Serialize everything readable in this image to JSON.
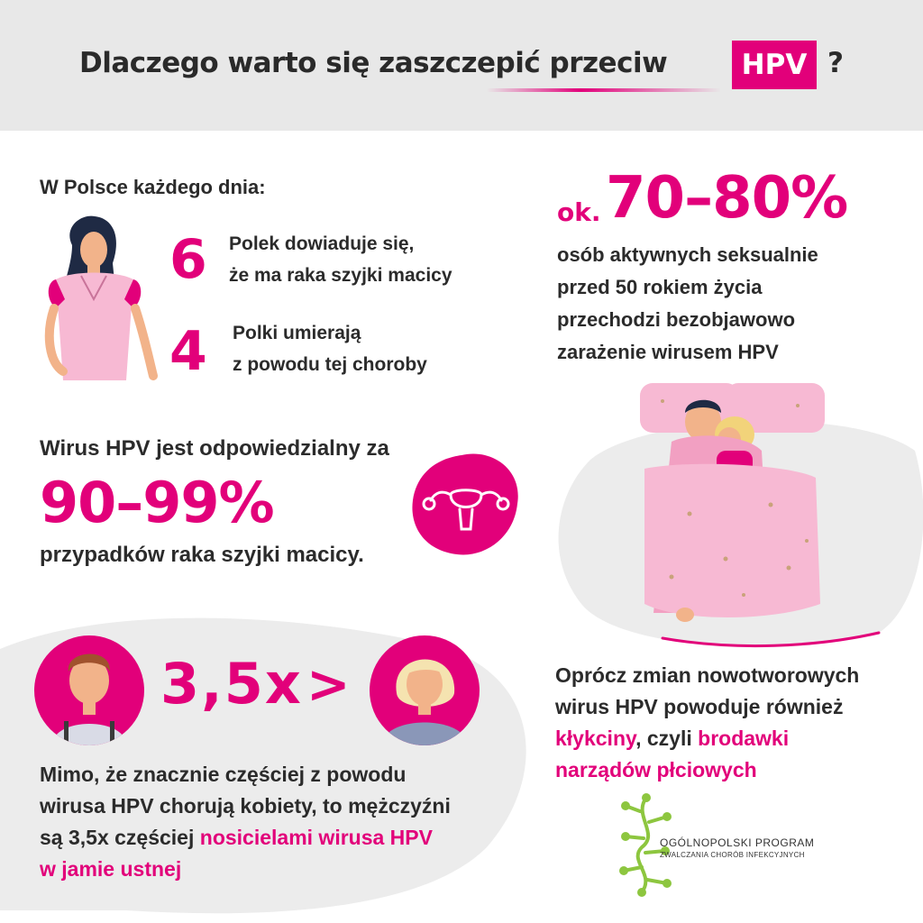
{
  "header": {
    "title": "Dlaczego warto się zaszczepić przeciw",
    "badge": "HPV",
    "question_mark": "?"
  },
  "daily": {
    "heading": "W Polsce każdego dnia:",
    "stat1_number": "6",
    "stat1_line1": "Polek dowiaduje się,",
    "stat1_line2": "że ma raka szyjki macicy",
    "stat2_number": "4",
    "stat2_line1": "Polki umierają",
    "stat2_line2": "z powodu tej choroby"
  },
  "asymptomatic": {
    "prefix": "ok.",
    "range": "70–80%",
    "line1": "osób aktywnych seksualnie",
    "line2": "przed 50 rokiem życia",
    "line3": "przechodzi bezobjawowo",
    "line4": "zarażenie wirusem HPV"
  },
  "responsible": {
    "line1": "Wirus HPV jest odpowiedzialny za",
    "range": "90–99%",
    "line2": "przypadków raka szyjki macicy."
  },
  "carriers": {
    "ratio": "3,5x",
    "comparison_symbol": ">",
    "line1": "Mimo, że znacznie częściej z powodu",
    "line2": "wirusa HPV chorują kobiety, to mężczyźni",
    "line3_start": "są 3,5x częściej ",
    "line3_pink": "nosicielami wirusa HPV",
    "line4_pink": "w jamie ustnej"
  },
  "warts": {
    "line1": "Oprócz zmian nowotworowych",
    "line2": "wirus HPV powoduje również",
    "pink1": "kłykciny",
    "mid": ", czyli ",
    "pink2": "brodawki",
    "pink3": "narządów płciowych"
  },
  "logo": {
    "line1": "OGÓLNOPOLSKI PROGRAM",
    "line2": "ZWALCZANIA CHORÓB INFEKCYJNYCH"
  },
  "colors": {
    "accent": "#e2007a",
    "text": "#2b2b2b",
    "header_bg": "#e8e8e8",
    "blob_bg": "#ececec",
    "logo_green": "#8dc63f"
  }
}
